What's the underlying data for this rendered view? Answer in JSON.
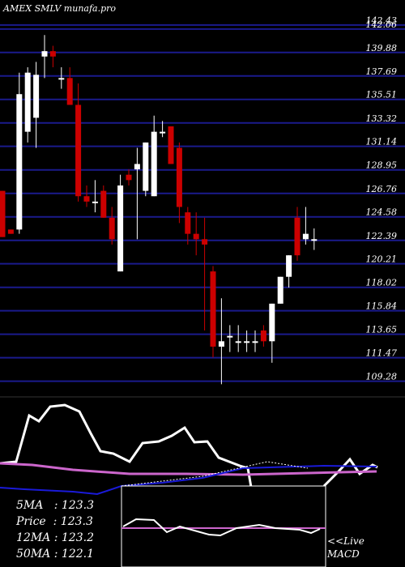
{
  "header": {
    "title": "AMEX  SMLV munafa.pro"
  },
  "chart_data": {
    "type": "candlestick",
    "price_axis": [
      "142.43",
      "142.06",
      "139.88",
      "137.69",
      "135.51",
      "133.32",
      "131.14",
      "128.95",
      "126.76",
      "124.58",
      "122.39",
      "120.21",
      "118.02",
      "115.84",
      "113.65",
      "111.47",
      "109.28"
    ],
    "ylim": [
      108.5,
      142.5
    ],
    "candles": [
      {
        "o": 127.0,
        "h": 127.0,
        "l": 122.7,
        "c": 122.7
      },
      {
        "o": 123.4,
        "h": 123.4,
        "l": 123.0,
        "c": 123.0
      },
      {
        "o": 123.4,
        "h": 138.0,
        "l": 123.0,
        "c": 136.0
      },
      {
        "o": 132.5,
        "h": 138.5,
        "l": 131.5,
        "c": 138.0
      },
      {
        "o": 133.8,
        "h": 139.0,
        "l": 131.0,
        "c": 137.8
      },
      {
        "o": 139.5,
        "h": 141.5,
        "l": 137.5,
        "c": 140.0
      },
      {
        "o": 140.0,
        "h": 140.5,
        "l": 138.5,
        "c": 139.5
      },
      {
        "o": 137.5,
        "h": 138.5,
        "l": 136.5,
        "c": 137.5
      },
      {
        "o": 137.5,
        "h": 138.5,
        "l": 135.0,
        "c": 135.0
      },
      {
        "o": 135.0,
        "h": 137.0,
        "l": 126.0,
        "c": 126.5
      },
      {
        "o": 126.5,
        "h": 127.5,
        "l": 125.5,
        "c": 126.0
      },
      {
        "o": 126.0,
        "h": 128.0,
        "l": 125.0,
        "c": 126.0
      },
      {
        "o": 127.0,
        "h": 127.5,
        "l": 124.5,
        "c": 124.5
      },
      {
        "o": 124.5,
        "h": 125.5,
        "l": 122.0,
        "c": 122.5
      },
      {
        "o": 119.5,
        "h": 128.5,
        "l": 119.5,
        "c": 127.5
      },
      {
        "o": 128.5,
        "h": 129.0,
        "l": 127.5,
        "c": 128.0
      },
      {
        "o": 129.0,
        "h": 131.0,
        "l": 122.5,
        "c": 129.5
      },
      {
        "o": 127.0,
        "h": 131.5,
        "l": 126.5,
        "c": 131.5
      },
      {
        "o": 126.5,
        "h": 134.0,
        "l": 126.5,
        "c": 132.5
      },
      {
        "o": 132.5,
        "h": 133.5,
        "l": 132.0,
        "c": 132.5
      },
      {
        "o": 133.0,
        "h": 133.0,
        "l": 129.5,
        "c": 129.5
      },
      {
        "o": 131.0,
        "h": 131.5,
        "l": 124.0,
        "c": 125.5
      },
      {
        "o": 125.0,
        "h": 125.5,
        "l": 122.0,
        "c": 123.0
      },
      {
        "o": 123.0,
        "h": 125.0,
        "l": 121.0,
        "c": 122.5
      },
      {
        "o": 122.5,
        "h": 124.5,
        "l": 114.0,
        "c": 122.0
      },
      {
        "o": 119.5,
        "h": 120.0,
        "l": 111.5,
        "c": 112.5
      },
      {
        "o": 112.5,
        "h": 117.0,
        "l": 109.0,
        "c": 113.0
      },
      {
        "o": 113.5,
        "h": 114.5,
        "l": 112.0,
        "c": 113.5
      },
      {
        "o": 113.0,
        "h": 114.5,
        "l": 112.0,
        "c": 113.0
      },
      {
        "o": 113.0,
        "h": 114.0,
        "l": 112.0,
        "c": 113.0
      },
      {
        "o": 113.0,
        "h": 114.0,
        "l": 112.0,
        "c": 113.0
      },
      {
        "o": 114.0,
        "h": 114.5,
        "l": 112.5,
        "c": 113.0
      },
      {
        "o": 113.0,
        "h": 116.5,
        "l": 111.0,
        "c": 116.5
      },
      {
        "o": 116.5,
        "h": 119.0,
        "l": 116.5,
        "c": 119.0
      },
      {
        "o": 119.0,
        "h": 121.0,
        "l": 118.0,
        "c": 121.0
      },
      {
        "o": 124.5,
        "h": 125.5,
        "l": 120.5,
        "c": 121.0
      },
      {
        "o": 122.5,
        "h": 125.5,
        "l": 122.0,
        "c": 123.0
      },
      {
        "o": 122.5,
        "h": 123.5,
        "l": 121.5,
        "c": 122.5
      }
    ],
    "indicator": {
      "labels": [
        "5MA",
        "Price",
        "12MA",
        "50MA"
      ],
      "values": [
        "123.3",
        "123.3",
        "123.2",
        "122.1"
      ]
    },
    "macd_label": [
      "<<Live",
      "MACD"
    ]
  },
  "colors": {
    "up": "#ffffff",
    "down": "#cc0000",
    "grid": "#1a1a8c",
    "ma_pink": "#cc66cc",
    "ma_blue": "#1a1ad9",
    "bg": "#000000"
  }
}
